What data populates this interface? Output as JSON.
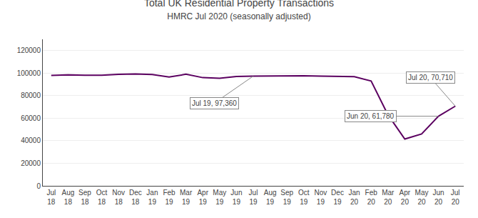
{
  "chart_data": {
    "type": "line",
    "title": "Total UK Residential Property Transactions",
    "subtitle": "HMRC Jul 2020 (seasonally adjusted)",
    "categories": [
      "Jul\n18",
      "Aug\n18",
      "Sep\n18",
      "Oct\n18",
      "Nov\n18",
      "Dec\n18",
      "Jan\n19",
      "Feb\n19",
      "Mar\n19",
      "Apr\n19",
      "May\n19",
      "Jun\n19",
      "Jul\n19",
      "Aug\n19",
      "Sep\n19",
      "Oct\n19",
      "Nov\n19",
      "Dec\n19",
      "Jan\n20",
      "Feb\n20",
      "Mar\n20",
      "Apr\n20",
      "May\n20",
      "Jun\n20",
      "Jul\n20"
    ],
    "values": [
      98000,
      98500,
      98200,
      98100,
      99000,
      99200,
      98800,
      96500,
      99000,
      96000,
      95500,
      97000,
      97360,
      97500,
      97800,
      97600,
      97300,
      97100,
      96800,
      93000,
      63000,
      41500,
      46000,
      61780,
      70710
    ],
    "color": "#5B0060",
    "ylim": [
      0,
      130000
    ],
    "yticks": [
      0,
      20000,
      40000,
      60000,
      80000,
      100000,
      120000
    ],
    "grid": true,
    "annotations": [
      {
        "text": "Jul 19, 97,360",
        "x": "Jul\n19",
        "y": 97360
      },
      {
        "text": "Jun 20, 61,780",
        "x": "Jun\n20",
        "y": 61780
      },
      {
        "text": "Jul 20, 70,710",
        "x": "Jul\n20",
        "y": 70710
      }
    ]
  }
}
